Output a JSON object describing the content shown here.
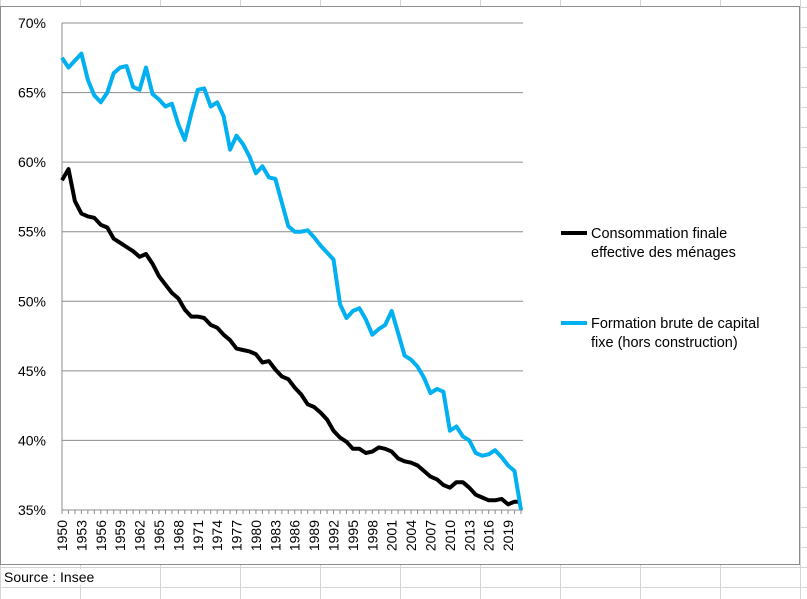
{
  "source_note": "Source : Insee",
  "chart_data": {
    "type": "line",
    "title": "",
    "xlabel": "",
    "ylabel": "",
    "ylim": [
      35,
      70
    ],
    "yticks": [
      "35%",
      "40%",
      "45%",
      "50%",
      "55%",
      "60%",
      "65%",
      "70%"
    ],
    "ytick_values": [
      35,
      40,
      45,
      50,
      55,
      60,
      65,
      70
    ],
    "x_start": 1950,
    "x_end": 2021,
    "xtick_labels": [
      "1950",
      "1953",
      "1956",
      "1959",
      "1962",
      "1965",
      "1968",
      "1971",
      "1974",
      "1977",
      "1980",
      "1983",
      "1986",
      "1989",
      "1992",
      "1995",
      "1998",
      "2001",
      "2004",
      "2007",
      "2010",
      "2013",
      "2016",
      "2019"
    ],
    "grid": true,
    "legend_position": "right",
    "series": [
      {
        "name": "Consommation finale effective des ménages",
        "legend_lines": [
          "Consommation finale",
          "effective des ménages"
        ],
        "color": "#000000",
        "values": [
          58.7,
          59.5,
          57.2,
          56.3,
          56.1,
          56.0,
          55.5,
          55.3,
          54.5,
          54.2,
          53.9,
          53.6,
          53.2,
          53.4,
          52.7,
          51.8,
          51.2,
          50.6,
          50.2,
          49.4,
          48.9,
          48.9,
          48.8,
          48.3,
          48.1,
          47.6,
          47.2,
          46.6,
          46.5,
          46.4,
          46.2,
          45.6,
          45.7,
          45.1,
          44.6,
          44.4,
          43.8,
          43.3,
          42.6,
          42.4,
          42.0,
          41.5,
          40.7,
          40.2,
          39.9,
          39.4,
          39.4,
          39.1,
          39.2,
          39.5,
          39.4,
          39.2,
          38.7,
          38.5,
          38.4,
          38.2,
          37.8,
          37.4,
          37.2,
          36.8,
          36.6,
          37.0,
          37.0,
          36.6,
          36.1,
          35.9,
          35.7,
          35.7,
          35.8,
          35.4,
          35.6,
          35.6
        ]
      },
      {
        "name": "Formation brute de capital fixe (hors construction)",
        "legend_lines": [
          "Formation brute de capital",
          "fixe (hors construction)"
        ],
        "color": "#00b0f0",
        "values": [
          67.5,
          66.8,
          67.3,
          67.8,
          65.9,
          64.8,
          64.3,
          65.0,
          66.4,
          66.8,
          66.9,
          65.4,
          65.2,
          66.8,
          64.9,
          64.5,
          64.0,
          64.2,
          62.7,
          61.6,
          63.5,
          65.2,
          65.3,
          64.0,
          64.3,
          63.3,
          60.9,
          61.9,
          61.3,
          60.4,
          59.2,
          59.7,
          58.9,
          58.8,
          57.1,
          55.4,
          55.0,
          55.0,
          55.1,
          54.6,
          54.0,
          53.5,
          53.0,
          49.8,
          48.8,
          49.3,
          49.5,
          48.7,
          47.6,
          48.0,
          48.3,
          49.3,
          47.7,
          46.1,
          45.8,
          45.3,
          44.5,
          43.4,
          43.7,
          43.5,
          40.7,
          41.0,
          40.3,
          40.0,
          39.1,
          38.9,
          39.0,
          39.3,
          38.8,
          38.2,
          37.8,
          35.0
        ]
      }
    ]
  }
}
